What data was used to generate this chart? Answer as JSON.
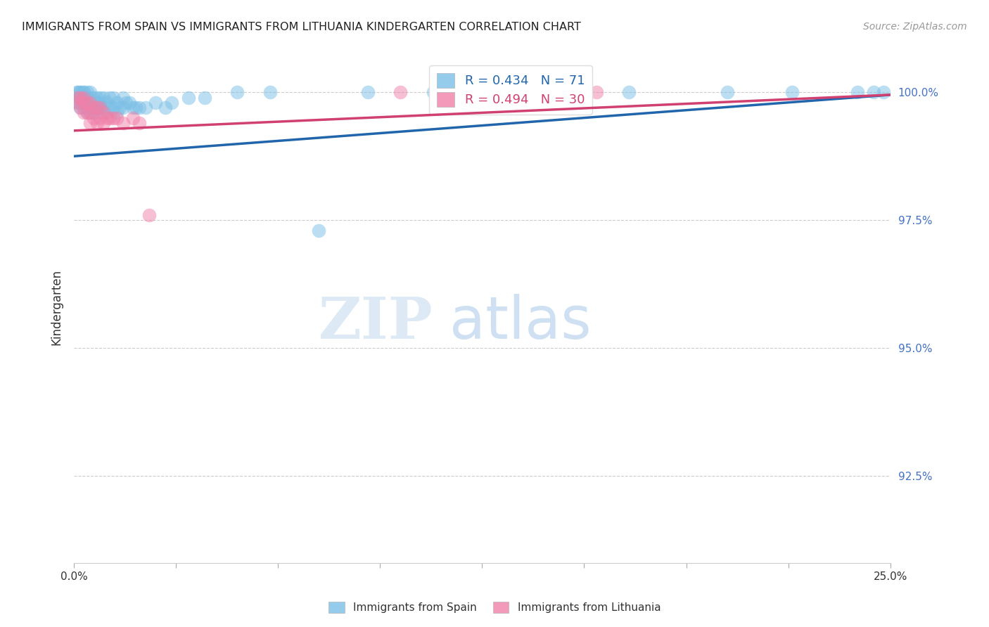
{
  "title": "IMMIGRANTS FROM SPAIN VS IMMIGRANTS FROM LITHUANIA KINDERGARTEN CORRELATION CHART",
  "source": "Source: ZipAtlas.com",
  "ylabel": "Kindergarten",
  "ytick_labels": [
    "100.0%",
    "97.5%",
    "95.0%",
    "92.5%"
  ],
  "ytick_values": [
    1.0,
    0.975,
    0.95,
    0.925
  ],
  "xmin": 0.0,
  "xmax": 0.25,
  "ymin": 0.908,
  "ymax": 1.008,
  "r_spain": 0.434,
  "n_spain": 71,
  "r_lithuania": 0.494,
  "n_lithuania": 30,
  "spain_color": "#7bbfe6",
  "lithuania_color": "#f080a8",
  "spain_line_color": "#2166ac",
  "lithuania_line_color": "#d04070",
  "legend_label_spain": "Immigrants from Spain",
  "legend_label_lithuania": "Immigrants from Lithuania",
  "watermark_zip": "ZIP",
  "watermark_atlas": "atlas",
  "spain_x": [
    0.001,
    0.001,
    0.001,
    0.001,
    0.002,
    0.002,
    0.002,
    0.002,
    0.002,
    0.003,
    0.003,
    0.003,
    0.003,
    0.003,
    0.004,
    0.004,
    0.004,
    0.004,
    0.004,
    0.005,
    0.005,
    0.005,
    0.005,
    0.005,
    0.006,
    0.006,
    0.006,
    0.006,
    0.007,
    0.007,
    0.007,
    0.007,
    0.008,
    0.008,
    0.008,
    0.009,
    0.009,
    0.01,
    0.01,
    0.011,
    0.011,
    0.012,
    0.012,
    0.013,
    0.013,
    0.014,
    0.015,
    0.015,
    0.016,
    0.017,
    0.018,
    0.019,
    0.02,
    0.022,
    0.025,
    0.028,
    0.03,
    0.035,
    0.04,
    0.05,
    0.06,
    0.075,
    0.09,
    0.11,
    0.15,
    0.17,
    0.2,
    0.22,
    0.24,
    0.245,
    0.248
  ],
  "spain_y": [
    1.0,
    1.0,
    0.999,
    0.998,
    1.0,
    1.0,
    0.999,
    0.998,
    0.997,
    1.0,
    1.0,
    0.999,
    0.998,
    0.997,
    1.0,
    0.999,
    0.998,
    0.997,
    0.996,
    1.0,
    0.999,
    0.998,
    0.997,
    0.996,
    0.999,
    0.998,
    0.997,
    0.996,
    0.999,
    0.998,
    0.997,
    0.996,
    0.999,
    0.998,
    0.997,
    0.999,
    0.997,
    0.998,
    0.996,
    0.999,
    0.997,
    0.999,
    0.997,
    0.998,
    0.996,
    0.997,
    0.999,
    0.997,
    0.998,
    0.998,
    0.997,
    0.997,
    0.997,
    0.997,
    0.998,
    0.997,
    0.998,
    0.999,
    0.999,
    1.0,
    1.0,
    0.973,
    1.0,
    1.0,
    1.0,
    1.0,
    1.0,
    1.0,
    1.0,
    1.0,
    1.0
  ],
  "lithuania_x": [
    0.001,
    0.001,
    0.002,
    0.002,
    0.003,
    0.003,
    0.003,
    0.004,
    0.004,
    0.005,
    0.005,
    0.005,
    0.006,
    0.006,
    0.007,
    0.007,
    0.008,
    0.008,
    0.009,
    0.009,
    0.01,
    0.011,
    0.012,
    0.013,
    0.015,
    0.018,
    0.02,
    0.023,
    0.1,
    0.16
  ],
  "lithuania_y": [
    0.999,
    0.998,
    0.999,
    0.997,
    0.999,
    0.998,
    0.996,
    0.998,
    0.996,
    0.998,
    0.996,
    0.994,
    0.997,
    0.995,
    0.997,
    0.994,
    0.997,
    0.995,
    0.996,
    0.994,
    0.995,
    0.995,
    0.995,
    0.995,
    0.994,
    0.995,
    0.994,
    0.976,
    1.0,
    1.0
  ],
  "spain_line_x0": 0.0,
  "spain_line_y0": 0.9875,
  "spain_line_x1": 0.25,
  "spain_line_y1": 0.9995,
  "lith_line_x0": 0.0,
  "lith_line_y0": 0.9925,
  "lith_line_x1": 0.25,
  "lith_line_y1": 0.9995
}
